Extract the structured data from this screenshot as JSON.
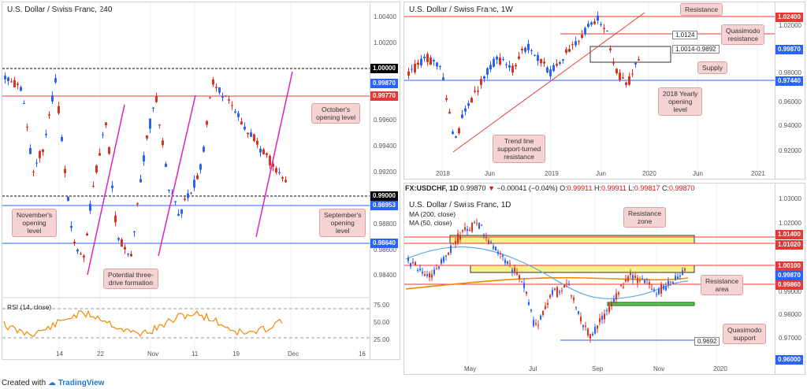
{
  "panels": {
    "four_hour": {
      "title": "U.S. Dollar / Swiss Franc, 240",
      "yticks": [
        "1.00400",
        "1.00200",
        "0.99600",
        "0.99400",
        "0.99200",
        "0.98800",
        "0.98600",
        "0.98400"
      ],
      "price_tags": [
        {
          "label": "1.00000",
          "color": "#000000"
        },
        {
          "label": "0.99870",
          "color": "#2962ff"
        },
        {
          "label": "0.99770",
          "color": "#e53935"
        },
        {
          "label": "0.99000",
          "color": "#000000"
        },
        {
          "label": "0.98953",
          "color": "#2962ff"
        },
        {
          "label": "0.98640",
          "color": "#2962ff"
        }
      ],
      "xticks": [
        "14",
        "22",
        "Nov",
        "11",
        "19",
        "Dec",
        "16"
      ],
      "notes": {
        "october": "October's\nopening level",
        "november": "November's\nopening\nlevel",
        "september": "September's\nopening\nlevel",
        "three_drive": "Potential three-\ndrive formation"
      },
      "rsi": {
        "label": "RSI (14, close)",
        "ticks": [
          "75.00",
          "50.00",
          "25.00"
        ]
      }
    },
    "weekly": {
      "title": "U.S. Dollar / Swiss Franc, 1W",
      "yticks": [
        "1.02000",
        "0.98000",
        "0.96000",
        "0.94000",
        "0.92000"
      ],
      "price_tags": [
        {
          "label": "1.02400",
          "color": "#e53935"
        },
        {
          "label": "0.99870",
          "color": "#2962ff"
        },
        {
          "label": "0.97440",
          "color": "#2962ff"
        }
      ],
      "xticks": [
        "2018",
        "Jun",
        "2019",
        "Jun",
        "2020",
        "Jun",
        "2021"
      ],
      "box_labels": {
        "qm": "1.0124",
        "supply": "1.0014-0.9892"
      },
      "notes": {
        "resistance": "Resistance",
        "qm": "Quasimodo\nresistance",
        "supply": "Supply",
        "yearly": "2018 Yearly\nopening\nlevel",
        "trend": "Trend line\nsupport-turned\nresistance"
      }
    },
    "daily": {
      "title": "U.S. Dollar / Swiss Franc, 1D",
      "ohlc": {
        "symbol": "FX:USDCHF, 1D",
        "last": "0.99870",
        "change": "−0.00041 (−0.04%)",
        "o_label": "O:",
        "o": "0.99911",
        "h_label": "H:",
        "h": "0.99911",
        "l_label": "L:",
        "l": "0.99817",
        "c_label": "C:",
        "c": "0.99870"
      },
      "ma200": "MA (200, close)",
      "ma50": "MA (50, close)",
      "yticks": [
        "1.03000",
        "1.02000",
        "0.99000",
        "0.98000",
        "0.97000"
      ],
      "price_tags": [
        {
          "label": "1.01400",
          "color": "#e53935"
        },
        {
          "label": "1.01020",
          "color": "#e53935"
        },
        {
          "label": "1.00100",
          "color": "#e53935"
        },
        {
          "label": "0.99870",
          "color": "#2962ff"
        },
        {
          "label": "0.99860",
          "color": "#e53935"
        },
        {
          "label": "0.9692",
          "color": "#2962ff"
        },
        {
          "label": "0.96000",
          "color": "#2962ff"
        }
      ],
      "xticks": [
        "May",
        "Jul",
        "Sep",
        "Nov",
        "2020"
      ],
      "box_labels": {
        "qm_support": "0.9692"
      },
      "notes": {
        "res_zone": "Resistance\nzone",
        "res_area": "Resistance\narea",
        "qm_support": "Quasimodo\nsupport"
      }
    }
  },
  "footer": {
    "prefix": "Created with",
    "brand": "TradingView"
  }
}
